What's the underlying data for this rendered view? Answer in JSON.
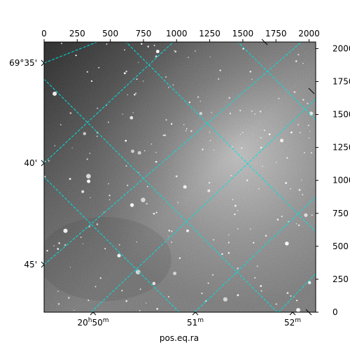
{
  "chart_data": {
    "type": "image",
    "colormap": "gray",
    "grid_color": "#00e0e0",
    "pixel_axes": {
      "x_ticks": [
        0,
        250,
        500,
        750,
        1000,
        1250,
        1500,
        1750,
        2000
      ],
      "x_tick_labels": [
        "0",
        "250",
        "500",
        "750",
        "1000",
        "1250",
        "1500",
        "1750",
        "2000"
      ],
      "y_ticks": [
        0,
        250,
        500,
        750,
        1000,
        1250,
        1500,
        1750,
        2000
      ],
      "y_tick_labels": [
        "0",
        "250",
        "500",
        "750",
        "1000",
        "1250",
        "1500",
        "1750",
        "2000"
      ],
      "xlim": [
        0,
        2050
      ],
      "ylim": [
        0,
        2050
      ]
    },
    "world_axes": {
      "xlabel": "pos.eq.ra",
      "ra_tick_labels": [
        {
          "h": "20",
          "hu": "h",
          "m": "50",
          "mu": "m"
        },
        {
          "h": "",
          "hu": "",
          "m": "51",
          "mu": "m"
        },
        {
          "h": "",
          "hu": "",
          "m": "52",
          "mu": "m"
        }
      ],
      "dec_tick_labels": [
        "69°35'",
        "40'",
        "45'"
      ]
    }
  }
}
